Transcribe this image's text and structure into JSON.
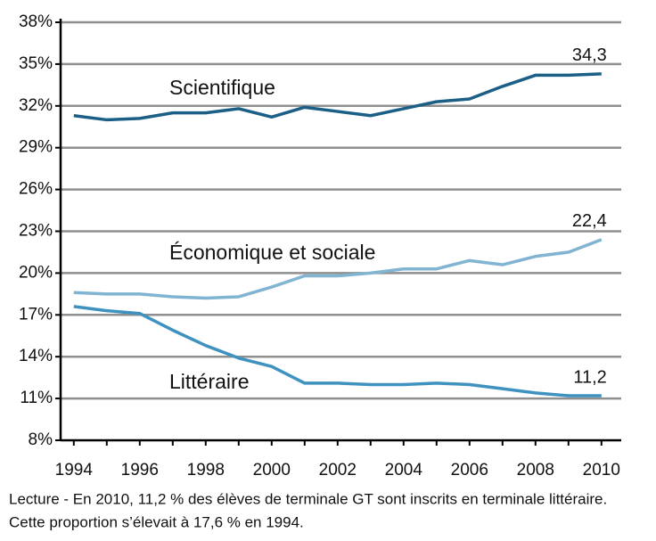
{
  "chart_data": {
    "type": "line",
    "x": [
      1994,
      1995,
      1996,
      1997,
      1998,
      1999,
      2000,
      2001,
      2002,
      2003,
      2004,
      2005,
      2006,
      2007,
      2008,
      2009,
      2010
    ],
    "xlim": [
      1993.6,
      2010.6
    ],
    "xticks": [
      1994,
      1996,
      1998,
      2000,
      2002,
      2004,
      2006,
      2008,
      2010
    ],
    "ylim": [
      8,
      38
    ],
    "yticks": [
      {
        "value": 8,
        "label": "8%"
      },
      {
        "value": 11,
        "label": "11%"
      },
      {
        "value": 14,
        "label": "14%"
      },
      {
        "value": 17,
        "label": "17%"
      },
      {
        "value": 20,
        "label": "20%"
      },
      {
        "value": 23,
        "label": "23%"
      },
      {
        "value": 26,
        "label": "26%"
      },
      {
        "value": 29,
        "label": "29%"
      },
      {
        "value": 32,
        "label": "32%"
      },
      {
        "value": 35,
        "label": "35%"
      },
      {
        "value": 38,
        "label": "38%"
      }
    ],
    "grid": true,
    "series": [
      {
        "name": "Scientifique",
        "color": "#1b5f86",
        "values": [
          31.3,
          31.0,
          31.1,
          31.5,
          31.5,
          31.8,
          31.2,
          31.9,
          31.6,
          31.3,
          31.8,
          32.3,
          32.5,
          33.4,
          34.2,
          34.2,
          34.3
        ],
        "value_labels": [
          null,
          null,
          null,
          null,
          null,
          null,
          null,
          null,
          null,
          null,
          null,
          null,
          null,
          null,
          null,
          null,
          "34,3"
        ]
      },
      {
        "name": "Économique et sociale",
        "color": "#80b4d2",
        "values": [
          18.6,
          18.5,
          18.5,
          18.3,
          18.2,
          18.3,
          19.0,
          19.8,
          19.8,
          20.0,
          20.3,
          20.3,
          20.9,
          20.6,
          21.2,
          21.5,
          22.4
        ],
        "value_labels": [
          null,
          null,
          null,
          null,
          null,
          null,
          null,
          null,
          null,
          null,
          null,
          null,
          null,
          null,
          null,
          null,
          "22,4"
        ]
      },
      {
        "name": "Littéraire",
        "color": "#3f92c0",
        "values": [
          17.6,
          17.3,
          17.1,
          15.9,
          14.8,
          13.9,
          13.3,
          12.1,
          12.1,
          12.0,
          12.0,
          12.1,
          12.0,
          11.7,
          11.4,
          11.2,
          11.2
        ],
        "value_labels": [
          null,
          null,
          null,
          null,
          null,
          null,
          null,
          null,
          null,
          null,
          null,
          null,
          null,
          null,
          null,
          null,
          "11,2"
        ]
      }
    ],
    "note": [
      "Lecture - En 2010, 11,2 % des élèves de terminale GT sont inscrits en terminale littéraire.",
      "Cette proportion s’élevait à 17,6 % en 1994."
    ]
  }
}
